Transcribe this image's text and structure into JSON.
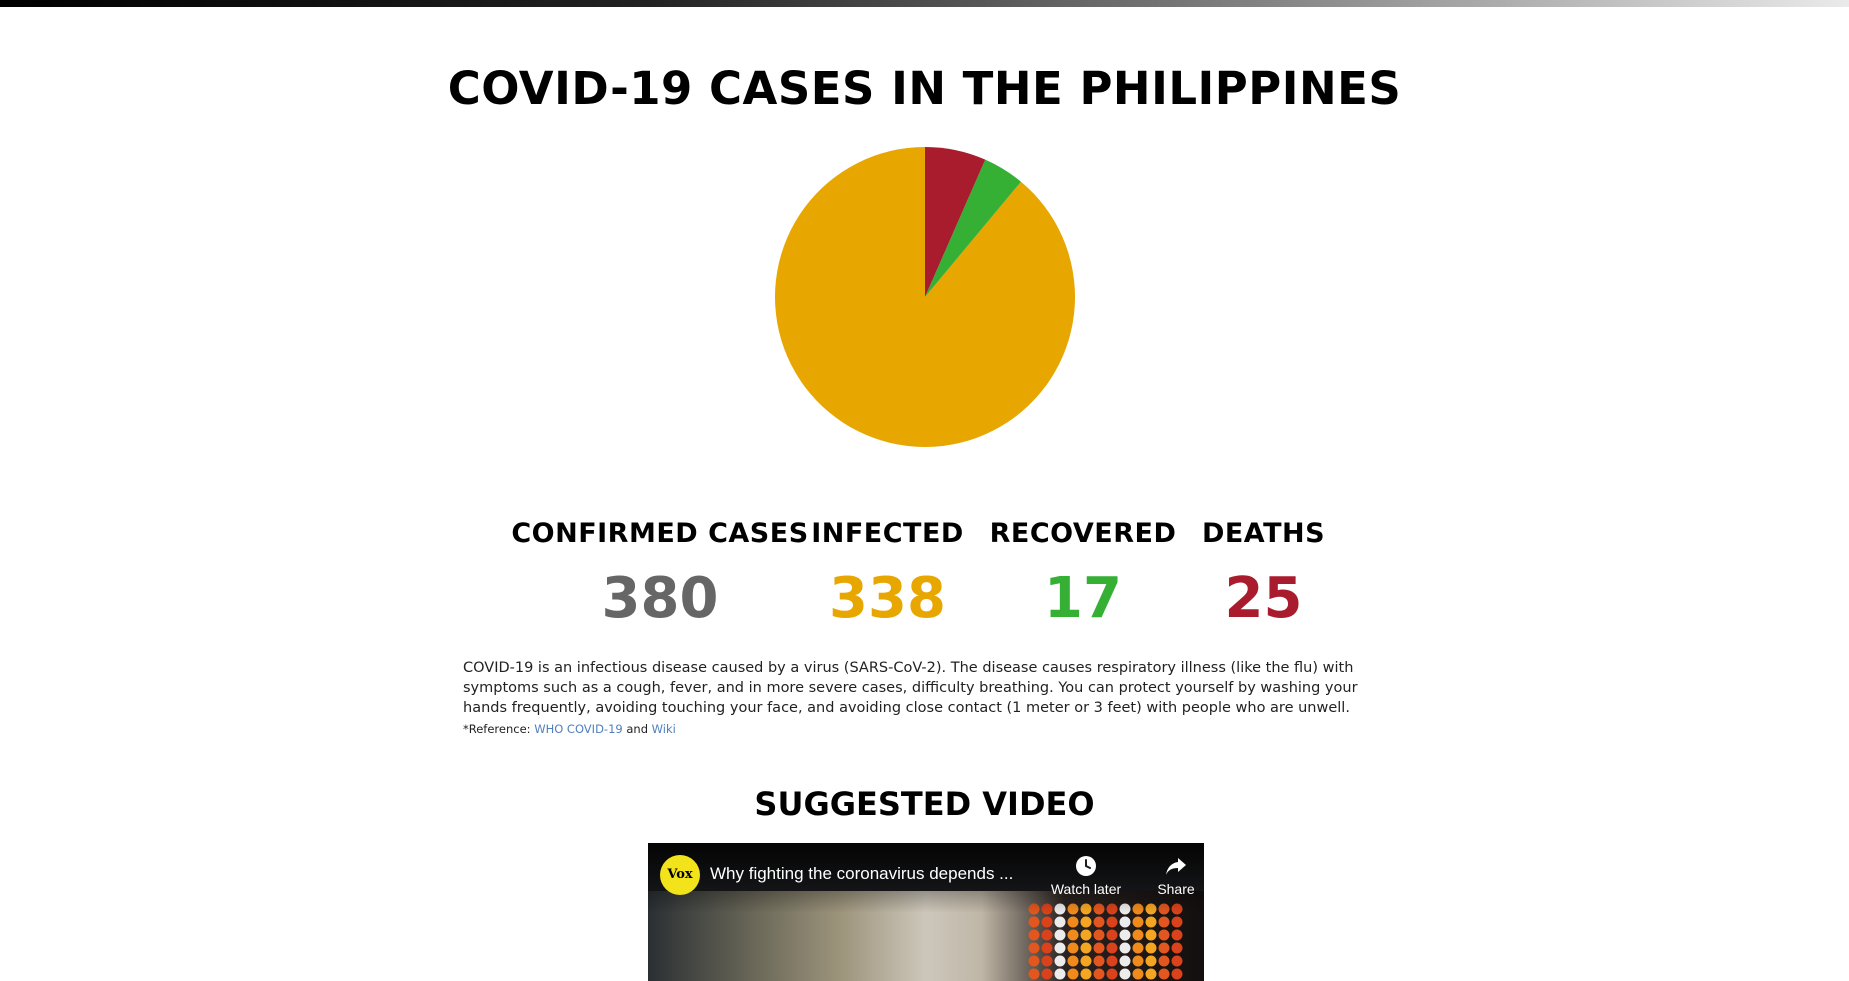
{
  "page": {
    "title": "COVID-19 CASES IN THE PHILIPPINES",
    "colors": {
      "confirmed": "#666666",
      "infected": "#e8a600",
      "recovered": "#35b035",
      "deaths": "#a81c2e"
    }
  },
  "stats": {
    "confirmed": {
      "label": "CONFIRMED CASES",
      "value": "380"
    },
    "infected": {
      "label": "INFECTED",
      "value": "338"
    },
    "recovered": {
      "label": "RECOVERED",
      "value": "17"
    },
    "deaths": {
      "label": "DEATHS",
      "value": "25"
    }
  },
  "description": {
    "text": "COVID-19 is an infectious disease caused by a virus (SARS-CoV-2).  The disease causes respiratory illness (like the flu) with symptoms such as a cough, fever, and in more severe cases, difficulty breathing.  You can protect yourself by washing your hands frequently, avoiding touching your face, and avoiding close contact (1 meter or 3 feet) with people who are unwell.",
    "ref_prefix": "*Reference:",
    "ref_link1": "WHO COVID-19",
    "ref_and": "and",
    "ref_link2": "Wiki"
  },
  "video_section": {
    "heading": "SUGGESTED VIDEO",
    "channel_logo_text": "Vox",
    "video_title": "Why fighting the coronavirus depends ...",
    "watch_later_label": "Watch later",
    "share_label": "Share",
    "channel_logo_icon": "vox-logo-icon",
    "watch_later_icon": "clock-icon",
    "share_icon": "share-arrow-icon"
  },
  "chart_data": {
    "type": "pie",
    "title": "",
    "slices": [
      {
        "label": "INFECTED",
        "value": 338,
        "color": "#e8a600"
      },
      {
        "label": "RECOVERED",
        "value": 17,
        "color": "#35b035"
      },
      {
        "label": "DEATHS",
        "value": 25,
        "color": "#a81c2e"
      }
    ],
    "legend": "none"
  }
}
